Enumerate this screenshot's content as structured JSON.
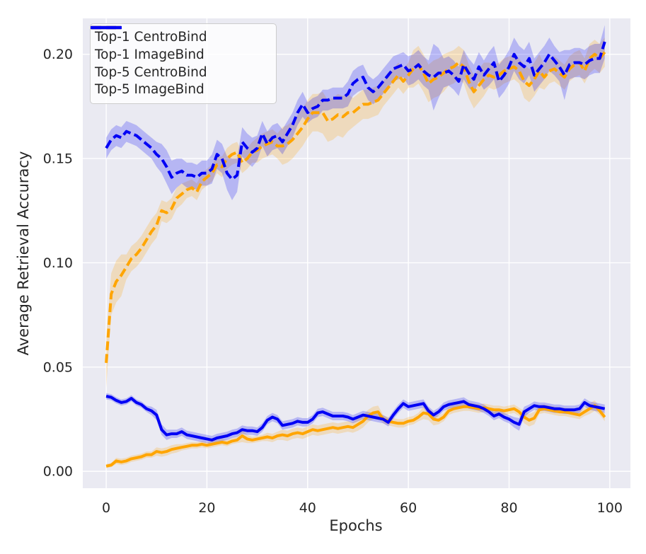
{
  "figure": {
    "background": "#ffffff",
    "plot_background": "#eaeaf2",
    "grid_color": "#ffffff",
    "text_color": "#262626",
    "legend_border_color": "#cccccc"
  },
  "chart_data": {
    "type": "line",
    "title": "",
    "xlabel": "Epochs",
    "ylabel": "Average Retrieval Accuracy",
    "grid": true,
    "legend_position": "upper left",
    "xlim": [
      -4.65,
      104.1
    ],
    "ylim": [
      -0.0081,
      0.2172
    ],
    "xticks": [
      0,
      20,
      40,
      60,
      80,
      100
    ],
    "xtick_labels": [
      "0",
      "20",
      "40",
      "60",
      "80",
      "100"
    ],
    "yticks": [
      0.0,
      0.05,
      0.1,
      0.15,
      0.2
    ],
    "ytick_labels": [
      "0.00",
      "0.05",
      "0.10",
      "0.15",
      "0.20"
    ],
    "band_opacity": 0.22,
    "epochs": [
      0,
      1,
      2,
      3,
      4,
      5,
      6,
      7,
      8,
      9,
      10,
      11,
      12,
      13,
      14,
      15,
      16,
      17,
      18,
      19,
      20,
      21,
      22,
      23,
      24,
      25,
      26,
      27,
      28,
      29,
      30,
      31,
      32,
      33,
      34,
      35,
      36,
      37,
      38,
      39,
      40,
      41,
      42,
      43,
      44,
      45,
      46,
      47,
      48,
      49,
      50,
      51,
      52,
      53,
      54,
      55,
      56,
      57,
      58,
      59,
      60,
      61,
      62,
      63,
      64,
      65,
      66,
      67,
      68,
      69,
      70,
      71,
      72,
      73,
      74,
      75,
      76,
      77,
      78,
      79,
      80,
      81,
      82,
      83,
      84,
      85,
      86,
      87,
      88,
      89,
      90,
      91,
      92,
      93,
      94,
      95,
      96,
      97,
      98,
      99
    ],
    "series": [
      {
        "name": "Top-1 CentroBind",
        "color": "#ffa500",
        "style": "solid",
        "values": [
          0.0025,
          0.003,
          0.005,
          0.0045,
          0.005,
          0.006,
          0.0065,
          0.007,
          0.008,
          0.008,
          0.0095,
          0.009,
          0.0095,
          0.0105,
          0.011,
          0.0115,
          0.012,
          0.0125,
          0.0125,
          0.013,
          0.0125,
          0.013,
          0.0135,
          0.014,
          0.0135,
          0.0145,
          0.015,
          0.017,
          0.0155,
          0.015,
          0.0155,
          0.016,
          0.0165,
          0.016,
          0.017,
          0.0175,
          0.017,
          0.018,
          0.0185,
          0.018,
          0.019,
          0.02,
          0.0195,
          0.02,
          0.0205,
          0.021,
          0.0205,
          0.021,
          0.0215,
          0.021,
          0.0225,
          0.024,
          0.0265,
          0.028,
          0.0285,
          0.025,
          0.024,
          0.0235,
          0.023,
          0.023,
          0.024,
          0.0245,
          0.026,
          0.028,
          0.0275,
          0.025,
          0.0245,
          0.026,
          0.029,
          0.03,
          0.0305,
          0.031,
          0.031,
          0.0305,
          0.03,
          0.0305,
          0.03,
          0.0295,
          0.0295,
          0.029,
          0.0295,
          0.03,
          0.0285,
          0.026,
          0.0245,
          0.0255,
          0.0295,
          0.03,
          0.0295,
          0.029,
          0.0285,
          0.0285,
          0.028,
          0.0275,
          0.027,
          0.0285,
          0.03,
          0.0315,
          0.029,
          0.026
        ],
        "band": [
          0.001,
          0.001,
          0.0015,
          0.0015,
          0.0015,
          0.0015,
          0.0015,
          0.0015,
          0.0015,
          0.0015,
          0.002,
          0.002,
          0.002,
          0.002,
          0.002,
          0.0015,
          0.0015,
          0.0015,
          0.0015,
          0.0015,
          0.0015,
          0.0015,
          0.0015,
          0.0015,
          0.0015,
          0.0015,
          0.0015,
          0.003,
          0.002,
          0.0015,
          0.0015,
          0.0015,
          0.002,
          0.002,
          0.002,
          0.0025,
          0.0025,
          0.0025,
          0.0025,
          0.0025,
          0.0025,
          0.0025,
          0.0025,
          0.0025,
          0.0025,
          0.0025,
          0.0025,
          0.0025,
          0.0025,
          0.0025,
          0.003,
          0.003,
          0.003,
          0.003,
          0.003,
          0.002,
          0.002,
          0.002,
          0.002,
          0.002,
          0.002,
          0.002,
          0.002,
          0.003,
          0.003,
          0.003,
          0.002,
          0.002,
          0.002,
          0.002,
          0.002,
          0.002,
          0.002,
          0.002,
          0.002,
          0.002,
          0.002,
          0.002,
          0.002,
          0.002,
          0.002,
          0.002,
          0.002,
          0.003,
          0.003,
          0.003,
          0.002,
          0.002,
          0.002,
          0.002,
          0.002,
          0.002,
          0.002,
          0.002,
          0.002,
          0.002,
          0.0025,
          0.0025,
          0.002,
          0.002
        ]
      },
      {
        "name": "Top-1 ImageBind",
        "color": "#0000f5",
        "style": "solid",
        "values": [
          0.036,
          0.0355,
          0.034,
          0.033,
          0.0335,
          0.035,
          0.033,
          0.032,
          0.03,
          0.029,
          0.027,
          0.02,
          0.0175,
          0.018,
          0.018,
          0.019,
          0.0175,
          0.017,
          0.0165,
          0.016,
          0.0155,
          0.015,
          0.016,
          0.0165,
          0.017,
          0.018,
          0.0185,
          0.02,
          0.0195,
          0.0195,
          0.019,
          0.021,
          0.0245,
          0.026,
          0.025,
          0.022,
          0.0225,
          0.023,
          0.024,
          0.0235,
          0.0235,
          0.025,
          0.028,
          0.0285,
          0.0275,
          0.0265,
          0.0265,
          0.0265,
          0.026,
          0.025,
          0.026,
          0.027,
          0.0265,
          0.026,
          0.0255,
          0.025,
          0.0235,
          0.027,
          0.03,
          0.0325,
          0.031,
          0.0315,
          0.032,
          0.0325,
          0.029,
          0.027,
          0.0285,
          0.031,
          0.032,
          0.0325,
          0.033,
          0.0335,
          0.032,
          0.0315,
          0.031,
          0.03,
          0.0285,
          0.0265,
          0.0275,
          0.026,
          0.025,
          0.0235,
          0.0225,
          0.0285,
          0.03,
          0.0315,
          0.031,
          0.031,
          0.0305,
          0.03,
          0.03,
          0.0295,
          0.0295,
          0.0295,
          0.03,
          0.033,
          0.0315,
          0.031,
          0.0305,
          0.03
        ],
        "band": [
          0.0015,
          0.0015,
          0.0015,
          0.0015,
          0.0015,
          0.0015,
          0.0015,
          0.0015,
          0.0015,
          0.002,
          0.0025,
          0.0025,
          0.0025,
          0.002,
          0.002,
          0.002,
          0.002,
          0.002,
          0.002,
          0.002,
          0.002,
          0.002,
          0.002,
          0.002,
          0.002,
          0.002,
          0.002,
          0.002,
          0.002,
          0.002,
          0.002,
          0.002,
          0.002,
          0.002,
          0.002,
          0.002,
          0.002,
          0.002,
          0.002,
          0.002,
          0.002,
          0.002,
          0.002,
          0.002,
          0.002,
          0.002,
          0.002,
          0.002,
          0.002,
          0.002,
          0.002,
          0.002,
          0.002,
          0.002,
          0.002,
          0.002,
          0.002,
          0.002,
          0.002,
          0.002,
          0.002,
          0.002,
          0.002,
          0.002,
          0.002,
          0.002,
          0.002,
          0.002,
          0.002,
          0.002,
          0.002,
          0.002,
          0.002,
          0.002,
          0.002,
          0.002,
          0.002,
          0.002,
          0.002,
          0.002,
          0.002,
          0.0025,
          0.003,
          0.0025,
          0.002,
          0.002,
          0.002,
          0.002,
          0.002,
          0.002,
          0.002,
          0.002,
          0.002,
          0.002,
          0.002,
          0.002,
          0.002,
          0.002,
          0.002,
          0.002
        ]
      },
      {
        "name": "Top-5 CentroBind",
        "color": "#ffa500",
        "style": "dashed",
        "values": [
          0.052,
          0.085,
          0.091,
          0.094,
          0.098,
          0.102,
          0.104,
          0.107,
          0.111,
          0.115,
          0.118,
          0.125,
          0.124,
          0.126,
          0.131,
          0.133,
          0.135,
          0.136,
          0.134,
          0.139,
          0.141,
          0.143,
          0.147,
          0.146,
          0.15,
          0.152,
          0.153,
          0.148,
          0.15,
          0.153,
          0.154,
          0.156,
          0.157,
          0.158,
          0.156,
          0.156,
          0.157,
          0.159,
          0.162,
          0.165,
          0.169,
          0.172,
          0.172,
          0.172,
          0.168,
          0.169,
          0.171,
          0.17,
          0.172,
          0.172,
          0.174,
          0.176,
          0.176,
          0.177,
          0.178,
          0.181,
          0.184,
          0.187,
          0.19,
          0.187,
          0.19,
          0.193,
          0.195,
          0.191,
          0.186,
          0.188,
          0.189,
          0.191,
          0.193,
          0.194,
          0.196,
          0.194,
          0.187,
          0.182,
          0.185,
          0.188,
          0.19,
          0.189,
          0.19,
          0.192,
          0.193,
          0.194,
          0.192,
          0.187,
          0.185,
          0.188,
          0.192,
          0.189,
          0.192,
          0.193,
          0.191,
          0.189,
          0.193,
          0.195,
          0.196,
          0.192,
          0.198,
          0.2,
          0.198,
          0.201
        ],
        "band": [
          0.012,
          0.01,
          0.01,
          0.01,
          0.006,
          0.006,
          0.006,
          0.006,
          0.006,
          0.006,
          0.006,
          0.005,
          0.005,
          0.005,
          0.005,
          0.005,
          0.004,
          0.004,
          0.004,
          0.004,
          0.004,
          0.004,
          0.004,
          0.005,
          0.005,
          0.005,
          0.005,
          0.005,
          0.005,
          0.005,
          0.006,
          0.006,
          0.006,
          0.006,
          0.006,
          0.009,
          0.009,
          0.009,
          0.009,
          0.009,
          0.009,
          0.009,
          0.009,
          0.01,
          0.01,
          0.01,
          0.01,
          0.01,
          0.009,
          0.007,
          0.007,
          0.007,
          0.007,
          0.007,
          0.007,
          0.006,
          0.006,
          0.006,
          0.006,
          0.006,
          0.006,
          0.009,
          0.009,
          0.009,
          0.009,
          0.009,
          0.009,
          0.009,
          0.008,
          0.008,
          0.008,
          0.008,
          0.008,
          0.008,
          0.008,
          0.008,
          0.006,
          0.006,
          0.006,
          0.006,
          0.006,
          0.006,
          0.006,
          0.008,
          0.008,
          0.008,
          0.008,
          0.006,
          0.006,
          0.006,
          0.006,
          0.006,
          0.006,
          0.006,
          0.006,
          0.006,
          0.007,
          0.007,
          0.007,
          0.007
        ]
      },
      {
        "name": "Top-5 ImageBind",
        "color": "#0000f5",
        "style": "dashed",
        "values": [
          0.155,
          0.159,
          0.161,
          0.16,
          0.163,
          0.162,
          0.161,
          0.159,
          0.157,
          0.155,
          0.152,
          0.15,
          0.146,
          0.141,
          0.143,
          0.144,
          0.142,
          0.142,
          0.141,
          0.143,
          0.143,
          0.145,
          0.152,
          0.15,
          0.143,
          0.14,
          0.142,
          0.158,
          0.155,
          0.153,
          0.155,
          0.162,
          0.157,
          0.16,
          0.161,
          0.158,
          0.162,
          0.166,
          0.172,
          0.176,
          0.172,
          0.174,
          0.175,
          0.178,
          0.178,
          0.179,
          0.179,
          0.179,
          0.181,
          0.186,
          0.188,
          0.189,
          0.184,
          0.182,
          0.184,
          0.187,
          0.19,
          0.193,
          0.194,
          0.195,
          0.192,
          0.193,
          0.195,
          0.192,
          0.19,
          0.189,
          0.191,
          0.191,
          0.192,
          0.19,
          0.187,
          0.195,
          0.191,
          0.188,
          0.194,
          0.19,
          0.193,
          0.196,
          0.187,
          0.19,
          0.194,
          0.2,
          0.196,
          0.194,
          0.198,
          0.19,
          0.193,
          0.196,
          0.2,
          0.197,
          0.194,
          0.19,
          0.195,
          0.196,
          0.196,
          0.195,
          0.197,
          0.198,
          0.198,
          0.206
        ],
        "band": [
          0.005,
          0.005,
          0.005,
          0.005,
          0.005,
          0.005,
          0.005,
          0.005,
          0.005,
          0.005,
          0.006,
          0.007,
          0.008,
          0.008,
          0.007,
          0.006,
          0.006,
          0.006,
          0.006,
          0.006,
          0.006,
          0.007,
          0.007,
          0.007,
          0.008,
          0.01,
          0.008,
          0.007,
          0.007,
          0.007,
          0.006,
          0.006,
          0.006,
          0.006,
          0.006,
          0.006,
          0.006,
          0.006,
          0.006,
          0.006,
          0.005,
          0.005,
          0.005,
          0.005,
          0.005,
          0.005,
          0.005,
          0.005,
          0.006,
          0.006,
          0.006,
          0.006,
          0.006,
          0.006,
          0.006,
          0.006,
          0.006,
          0.006,
          0.006,
          0.006,
          0.007,
          0.007,
          0.007,
          0.007,
          0.007,
          0.016,
          0.012,
          0.007,
          0.007,
          0.007,
          0.007,
          0.007,
          0.007,
          0.007,
          0.007,
          0.007,
          0.008,
          0.008,
          0.008,
          0.008,
          0.008,
          0.008,
          0.008,
          0.008,
          0.008,
          0.008,
          0.008,
          0.008,
          0.008,
          0.007,
          0.007,
          0.012,
          0.007,
          0.007,
          0.007,
          0.007,
          0.007,
          0.007,
          0.007,
          0.008
        ]
      }
    ]
  }
}
